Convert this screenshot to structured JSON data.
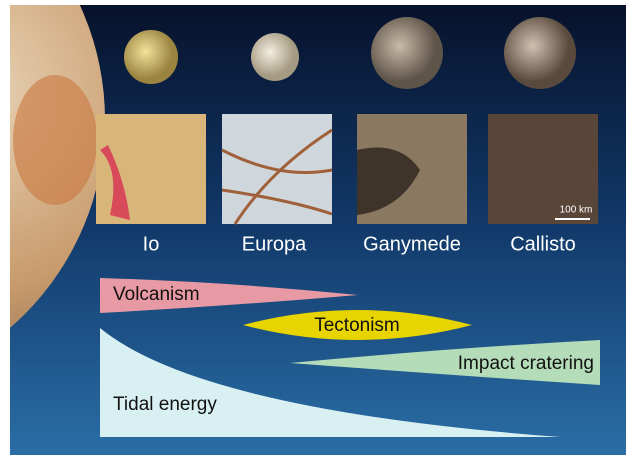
{
  "moons": [
    {
      "name": "Io"
    },
    {
      "name": "Europa"
    },
    {
      "name": "Ganymede"
    },
    {
      "name": "Callisto"
    }
  ],
  "scale_bar": "100 km",
  "processes": {
    "volcanism": "Volcanism",
    "tectonism": "Tectonism",
    "impact_cratering": "Impact cratering",
    "tidal_energy": "Tidal energy"
  }
}
